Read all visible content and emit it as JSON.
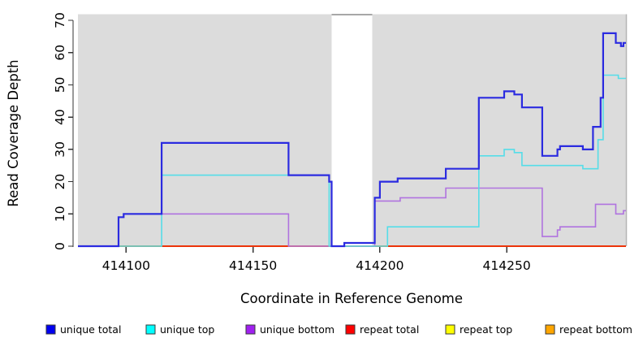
{
  "chart_data": {
    "type": "line",
    "subtype": "step-coverage",
    "title": "",
    "xlabel": "Coordinate in Reference Genome",
    "ylabel": "Read Coverage Depth",
    "xlim": [
      414081,
      414297
    ],
    "ylim": [
      0,
      70
    ],
    "x_ticks": [
      414100,
      414150,
      414200,
      414250
    ],
    "y_ticks": [
      0,
      10,
      20,
      30,
      40,
      50,
      60,
      70
    ],
    "grid": "off",
    "plot_background": "#dcdcdc",
    "no_data_region": {
      "x_start": 414181,
      "x_end": 414197,
      "fill": "#ffffff"
    },
    "series": [
      {
        "name": "repeat bottom",
        "color": "#ff9e1b",
        "width": 1.8,
        "points": [
          [
            414081,
            0
          ],
          [
            414297,
            0
          ]
        ]
      },
      {
        "name": "repeat top",
        "color": "#ffee00",
        "width": 1.5,
        "points": [
          [
            414081,
            0
          ],
          [
            414297,
            0
          ]
        ]
      },
      {
        "name": "repeat total",
        "color": "#e60000",
        "width": 1.5,
        "points": [
          [
            414081,
            0
          ],
          [
            414297,
            0
          ]
        ]
      },
      {
        "name": "unique bottom",
        "color": "#b073df",
        "width": 1.6,
        "points": [
          [
            414081,
            0
          ],
          [
            414097,
            9
          ],
          [
            414099,
            10
          ],
          [
            414164,
            0
          ],
          [
            414198,
            14
          ],
          [
            414208,
            15
          ],
          [
            414226,
            18
          ],
          [
            414264,
            3
          ],
          [
            414270,
            5
          ],
          [
            414271,
            6
          ],
          [
            414285,
            13
          ],
          [
            414293,
            10
          ],
          [
            414296,
            11
          ],
          [
            414297,
            11
          ]
        ]
      },
      {
        "name": "unique top",
        "color": "#55dde8",
        "width": 1.6,
        "points": [
          [
            414081,
            0
          ],
          [
            414114,
            22
          ],
          [
            414180,
            0
          ],
          [
            414203,
            6
          ],
          [
            414239,
            28
          ],
          [
            414249,
            30
          ],
          [
            414253,
            29
          ],
          [
            414256,
            25
          ],
          [
            414280,
            24
          ],
          [
            414286,
            33
          ],
          [
            414288,
            53
          ],
          [
            414294,
            52
          ],
          [
            414297,
            52
          ]
        ]
      },
      {
        "name": "unique total",
        "color": "#2b2be0",
        "width": 2.2,
        "points": [
          [
            414081,
            0
          ],
          [
            414097,
            9
          ],
          [
            414099,
            10
          ],
          [
            414114,
            32
          ],
          [
            414164,
            22
          ],
          [
            414180,
            20
          ],
          [
            414181,
            0
          ],
          [
            414186,
            1
          ],
          [
            414198,
            15
          ],
          [
            414200,
            20
          ],
          [
            414207,
            21
          ],
          [
            414226,
            24
          ],
          [
            414239,
            46
          ],
          [
            414249,
            48
          ],
          [
            414253,
            47
          ],
          [
            414256,
            43
          ],
          [
            414264,
            28
          ],
          [
            414270,
            30
          ],
          [
            414271,
            31
          ],
          [
            414280,
            30
          ],
          [
            414284,
            37
          ],
          [
            414287,
            46
          ],
          [
            414288,
            66
          ],
          [
            414293,
            63
          ],
          [
            414295,
            62
          ],
          [
            414296,
            63
          ],
          [
            414297,
            63
          ]
        ]
      }
    ],
    "legend": [
      {
        "label": "unique total",
        "color": "#0000f0"
      },
      {
        "label": "unique top",
        "color": "#00ffff"
      },
      {
        "label": "unique bottom",
        "color": "#a020f0"
      },
      {
        "label": "repeat total",
        "color": "#ff0000"
      },
      {
        "label": "repeat top",
        "color": "#ffff00"
      },
      {
        "label": "repeat bottom",
        "color": "#ffa500"
      }
    ],
    "legend_position": "bottom"
  }
}
